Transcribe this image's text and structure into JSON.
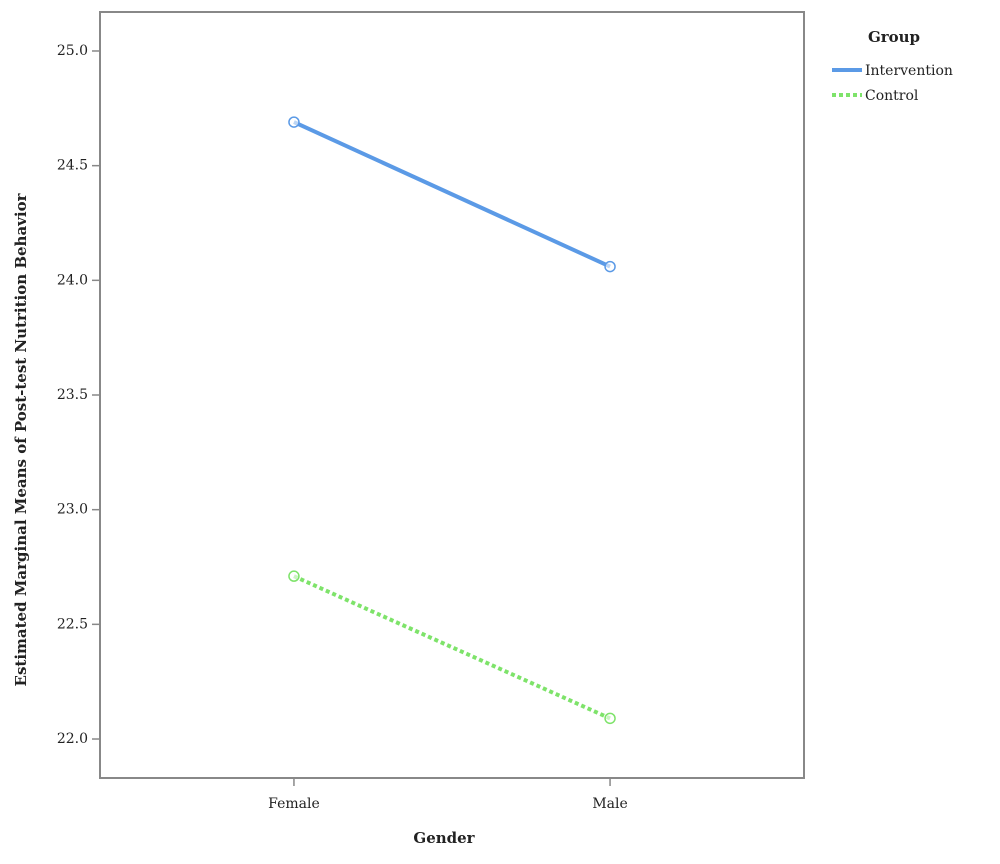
{
  "chart_data": {
    "type": "line",
    "x_label": "Gender",
    "y_label": "Estimated Marginal Means of Post-test Nutrition Behavior",
    "categories": [
      "Female",
      "Male"
    ],
    "series": [
      {
        "name": "Intervention",
        "color": "#5b9ae6",
        "line_style": "solid",
        "values": [
          24.69,
          24.06
        ]
      },
      {
        "name": "Control",
        "color": "#7ee36a",
        "line_style": "dotted",
        "values": [
          22.71,
          22.09
        ]
      }
    ],
    "legend_title": "Group",
    "legend": "right",
    "ylim": [
      21.83,
      25.17
    ],
    "yticks": [
      {
        "value": 22,
        "label": "22.0"
      },
      22.5,
      {
        "value": 23,
        "label": "23.0"
      },
      23.5,
      {
        "value": 24,
        "label": "24.0"
      },
      24.5,
      {
        "value": 25,
        "label": "25.0"
      }
    ],
    "grid": false
  }
}
